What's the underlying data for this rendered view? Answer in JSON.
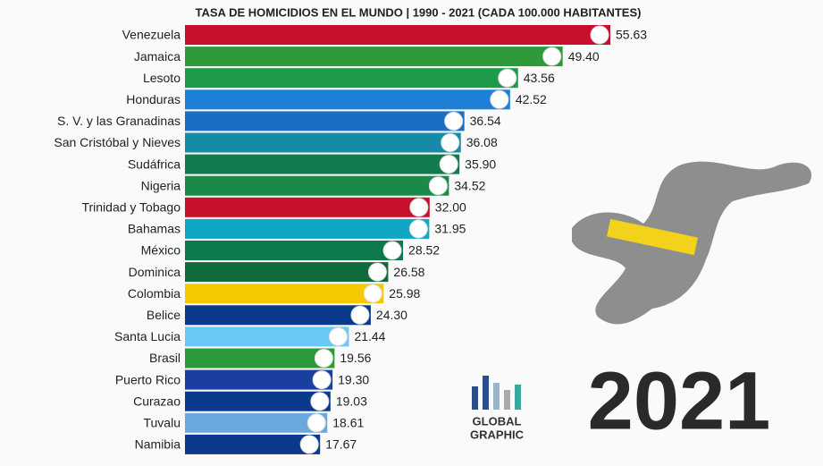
{
  "chart_data": {
    "type": "bar",
    "orientation": "horizontal",
    "title": "TASA DE HOMICIDIOS EN EL MUNDO | 1990 - 2021 (CADA 100.000 HABITANTES)",
    "categories": [
      "Venezuela",
      "Jamaica",
      "Lesoto",
      "Honduras",
      "S. V. y las Granadinas",
      "San Cristóbal y Nieves",
      "Sudáfrica",
      "Nigeria",
      "Trinidad y Tobago",
      "Bahamas",
      "México",
      "Dominica",
      "Colombia",
      "Belice",
      "Santa Lucia",
      "Brasil",
      "Puerto Rico",
      "Curazao",
      "Tuvalu",
      "Namibia"
    ],
    "values": [
      55.63,
      49.4,
      43.56,
      42.52,
      36.54,
      36.08,
      35.9,
      34.52,
      32.0,
      31.95,
      28.52,
      26.58,
      25.98,
      24.3,
      21.44,
      19.56,
      19.3,
      19.03,
      18.61,
      17.67
    ],
    "value_labels": [
      "55.63",
      "49.40",
      "43.56",
      "42.52",
      "36.54",
      "36.08",
      "35.90",
      "34.52",
      "32.00",
      "31.95",
      "28.52",
      "26.58",
      "25.98",
      "24.30",
      "21.44",
      "19.56",
      "19.30",
      "19.03",
      "18.61",
      "17.67"
    ],
    "colors": [
      "#c8102e",
      "#2e9a3a",
      "#1d9a4a",
      "#1e7fd6",
      "#1a6fc4",
      "#178aa8",
      "#117a4f",
      "#1a8a4a",
      "#c8102e",
      "#10a7c4",
      "#0c7a4a",
      "#0f6b3c",
      "#f6c800",
      "#0b3a8c",
      "#6ac8f5",
      "#2a9a3a",
      "#1b3fa0",
      "#0b3a8c",
      "#6aa8e0",
      "#0b3a8c"
    ],
    "annotation": "2021",
    "logo": [
      "GLOBAL",
      "GRAPHIC"
    ]
  }
}
